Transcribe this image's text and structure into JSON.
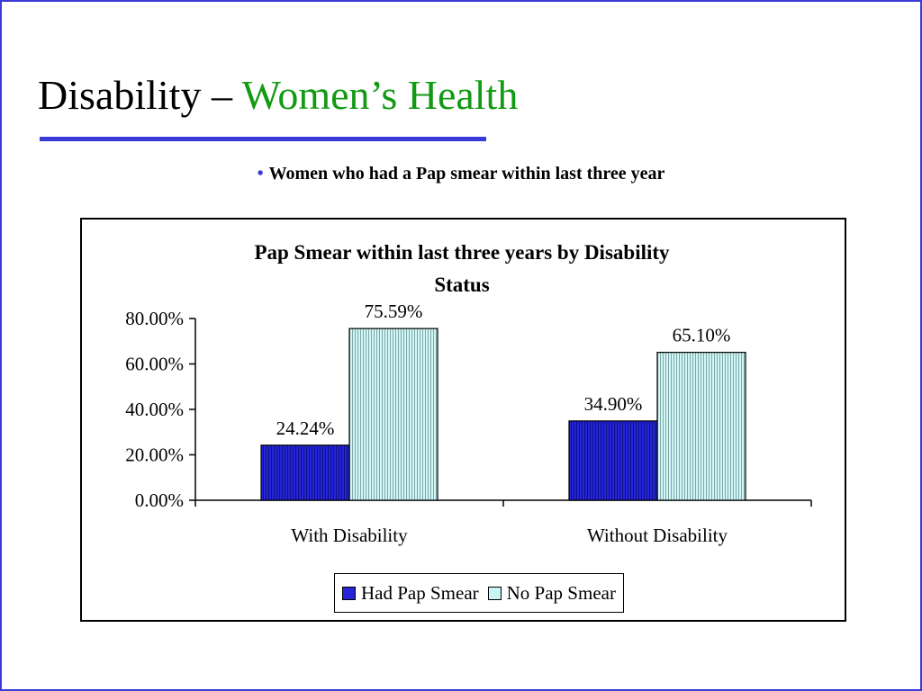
{
  "slide": {
    "title_main": "Disability – ",
    "title_accent": "Women’s Health",
    "bullet_marker": "•",
    "bullet_text": "Women who had a Pap smear within last three year"
  },
  "colors": {
    "accent_blue": "#3a3ad6",
    "accent_green": "#139a13",
    "had_pap": "#2222dd",
    "no_pap": "#c8f4f4"
  },
  "chart_data": {
    "type": "bar",
    "title_line1": "Pap Smear within last three years by Disability",
    "title_line2": "Status",
    "categories": [
      "With Disability",
      "Without Disability"
    ],
    "series": [
      {
        "name": "Had Pap Smear",
        "values": [
          24.24,
          34.9
        ],
        "labels": [
          "24.24%",
          "34.90%"
        ]
      },
      {
        "name": "No Pap Smear",
        "values": [
          75.59,
          65.1
        ],
        "labels": [
          "75.59%",
          "65.10%"
        ]
      }
    ],
    "yticks": [
      {
        "value": 0,
        "label": "0.00%"
      },
      {
        "value": 20,
        "label": "20.00%"
      },
      {
        "value": 40,
        "label": "40.00%"
      },
      {
        "value": 60,
        "label": "60.00%"
      },
      {
        "value": 80,
        "label": "80.00%"
      }
    ],
    "ylim": [
      0,
      80
    ],
    "grid": false,
    "legend_position": "bottom"
  }
}
